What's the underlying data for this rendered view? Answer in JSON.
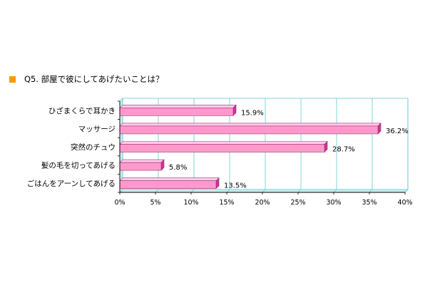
{
  "title_marker_color": "#ff9900",
  "chart_data": {
    "type": "bar",
    "orientation": "horizontal",
    "title": "Q5. 部屋で彼にしてあげたいことは？",
    "categories": [
      "ひざまくらで耳かき",
      "マッサージ",
      "突然のチュウ",
      "髪の毛を切ってあげる",
      "ごはんをアーンしてあげる"
    ],
    "values": [
      15.9,
      36.2,
      28.7,
      5.8,
      13.5
    ],
    "value_labels": [
      "15.9%",
      "36.2%",
      "28.7%",
      "5.8%",
      "13.5%"
    ],
    "x_ticks": [
      "0%",
      "5%",
      "10%",
      "15%",
      "20%",
      "25%",
      "30%",
      "35%",
      "40%"
    ],
    "xlim": [
      0,
      40
    ],
    "grid": true,
    "legend": "none",
    "colors": {
      "bar_front": "#ff99cc",
      "bar_top": "#ffccee",
      "bar_side": "#cc3399",
      "bar_edge": "#993366",
      "plot_background": "#ffffff",
      "floor_wall": "#cceeee",
      "grid": "#66cccc"
    }
  }
}
